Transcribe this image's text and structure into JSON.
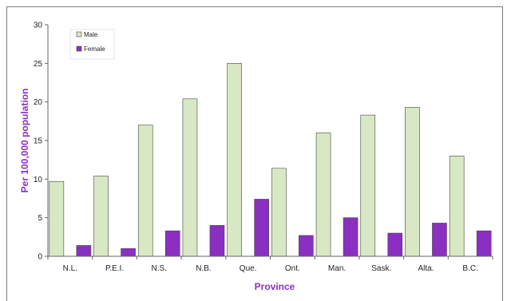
{
  "chart_data": {
    "type": "bar",
    "title": "",
    "xlabel": "Province",
    "ylabel": "Per 100,000 population",
    "ylim": [
      0,
      30
    ],
    "yticks": [
      0,
      5,
      10,
      15,
      20,
      25,
      30
    ],
    "grid": false,
    "legend_position": "top-left",
    "categories": [
      "N.L.",
      "P.E.I.",
      "N.S.",
      "N.B.",
      "Que.",
      "Ont.",
      "Man.",
      "Sask.",
      "Alta.",
      "B.C."
    ],
    "series": [
      {
        "name": "Male",
        "color": "#d9e8c4",
        "values": [
          9.7,
          10.4,
          17.0,
          20.4,
          25.0,
          11.4,
          16.0,
          18.3,
          19.3,
          13.0
        ]
      },
      {
        "name": "Female",
        "color": "#8a2fc2",
        "values": [
          1.4,
          1.0,
          3.3,
          4.0,
          7.4,
          2.7,
          5.0,
          3.0,
          4.3,
          3.3
        ]
      }
    ]
  }
}
